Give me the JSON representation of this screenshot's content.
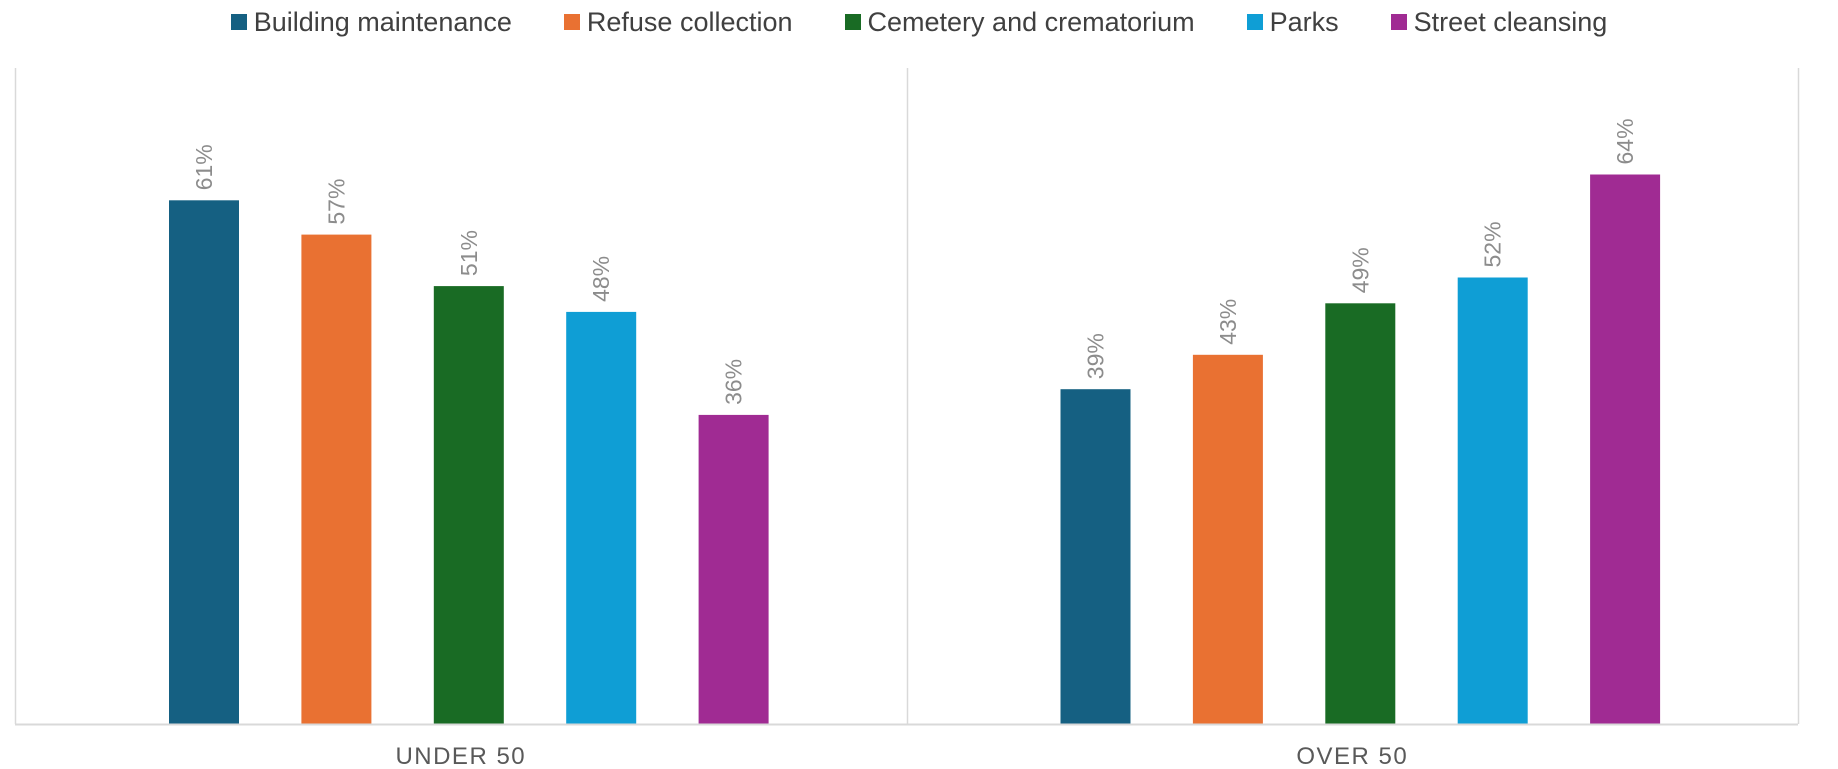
{
  "chart_data": {
    "type": "bar",
    "categories": [
      "UNDER 50",
      "OVER 50"
    ],
    "series": [
      {
        "name": "Building maintenance",
        "color": "#156082",
        "values": [
          61,
          39
        ],
        "labels": [
          "61%",
          "39%"
        ]
      },
      {
        "name": "Refuse collection",
        "color": "#E97132",
        "values": [
          57,
          43
        ],
        "labels": [
          "57%",
          "43%"
        ]
      },
      {
        "name": "Cemetery and crematorium",
        "color": "#196B24",
        "values": [
          51,
          49
        ],
        "labels": [
          "51%",
          "49%"
        ]
      },
      {
        "name": "Parks",
        "color": "#0F9ED5",
        "values": [
          48,
          52
        ],
        "labels": [
          "48%",
          "52%"
        ]
      },
      {
        "name": "Street cleansing",
        "color": "#A02B93",
        "values": [
          36,
          64
        ],
        "labels": [
          "36%",
          "64%"
        ]
      }
    ],
    "ylim": [
      0,
      70
    ],
    "value_suffix": "%",
    "legend_position": "top",
    "gridlines": false,
    "panel_separator": true,
    "axis_color": "#d9d9d9"
  }
}
